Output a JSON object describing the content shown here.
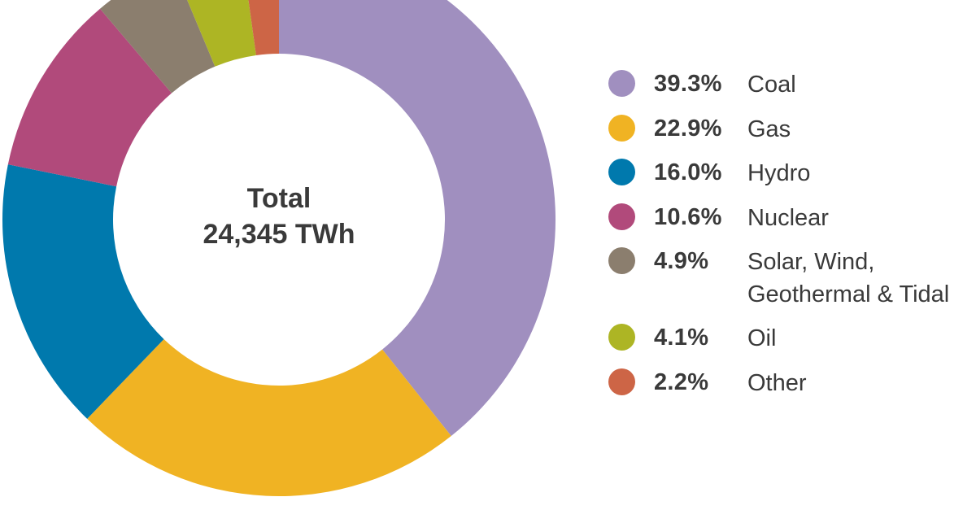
{
  "chart_data": {
    "type": "pie",
    "subtype": "donut",
    "title": "",
    "center_label": {
      "line1": "Total",
      "line2": "24,345 TWh"
    },
    "total_value": 24345,
    "unit": "TWh",
    "start_angle": "12 o'clock, clockwise",
    "legend_position": "right",
    "categories": [
      "Coal",
      "Gas",
      "Hydro",
      "Nuclear",
      "Solar, Wind, Geothermal & Tidal",
      "Oil",
      "Other"
    ],
    "values": [
      39.3,
      22.9,
      16.0,
      10.6,
      4.9,
      4.1,
      2.2
    ],
    "colors": [
      "#A08FBF",
      "#F0B323",
      "#0079AD",
      "#B14A7B",
      "#8B7E6E",
      "#ADB524",
      "#CD6546"
    ]
  },
  "legend": {
    "items": [
      {
        "pct": "39.3%",
        "name": "Coal",
        "color": "#A08FBF"
      },
      {
        "pct": "22.9%",
        "name": "Gas",
        "color": "#F0B323"
      },
      {
        "pct": "16.0%",
        "name": "Hydro",
        "color": "#0079AD"
      },
      {
        "pct": "10.6%",
        "name": "Nuclear",
        "color": "#B14A7B"
      },
      {
        "pct": "4.9%",
        "name": "Solar, Wind,",
        "name2": "Geothermal & Tidal",
        "color": "#8B7E6E"
      },
      {
        "pct": "4.1%",
        "name": "Oil",
        "color": "#ADB524"
      },
      {
        "pct": "2.2%",
        "name": "Other",
        "color": "#CD6546"
      }
    ]
  }
}
